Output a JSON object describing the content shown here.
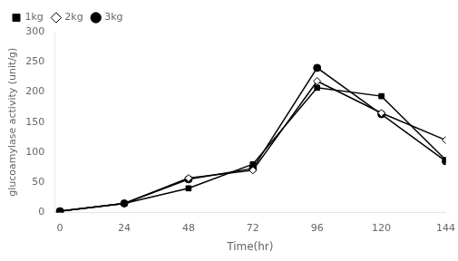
{
  "chart_data": {
    "type": "line",
    "x": [
      0,
      24,
      48,
      72,
      96,
      120,
      144
    ],
    "series": [
      {
        "name": "1kg",
        "color": "#000000",
        "marker": "square",
        "line_style": "solid",
        "values": [
          2,
          15,
          40,
          80,
          207,
          193,
          87
        ]
      },
      {
        "name": "2kg",
        "color": "#000000",
        "marker": "diamond-open",
        "line_style": "solid",
        "values": [
          2,
          15,
          57,
          70,
          218,
          165,
          120
        ]
      },
      {
        "name": "3kg",
        "color": "#000000",
        "marker": "circle",
        "line_style": "solid",
        "values": [
          2,
          15,
          55,
          73,
          240,
          163,
          85
        ]
      }
    ],
    "xlabel": "Time(hr)",
    "ylabel": "glucoamylase activity (unit/g)",
    "xlim": [
      -2,
      144
    ],
    "ylim": [
      0,
      300
    ],
    "xticks": [
      0,
      24,
      48,
      72,
      96,
      120,
      144
    ],
    "yticks": [
      0,
      50,
      100,
      150,
      200,
      250,
      300
    ],
    "legend": "upper left",
    "grid": false
  }
}
